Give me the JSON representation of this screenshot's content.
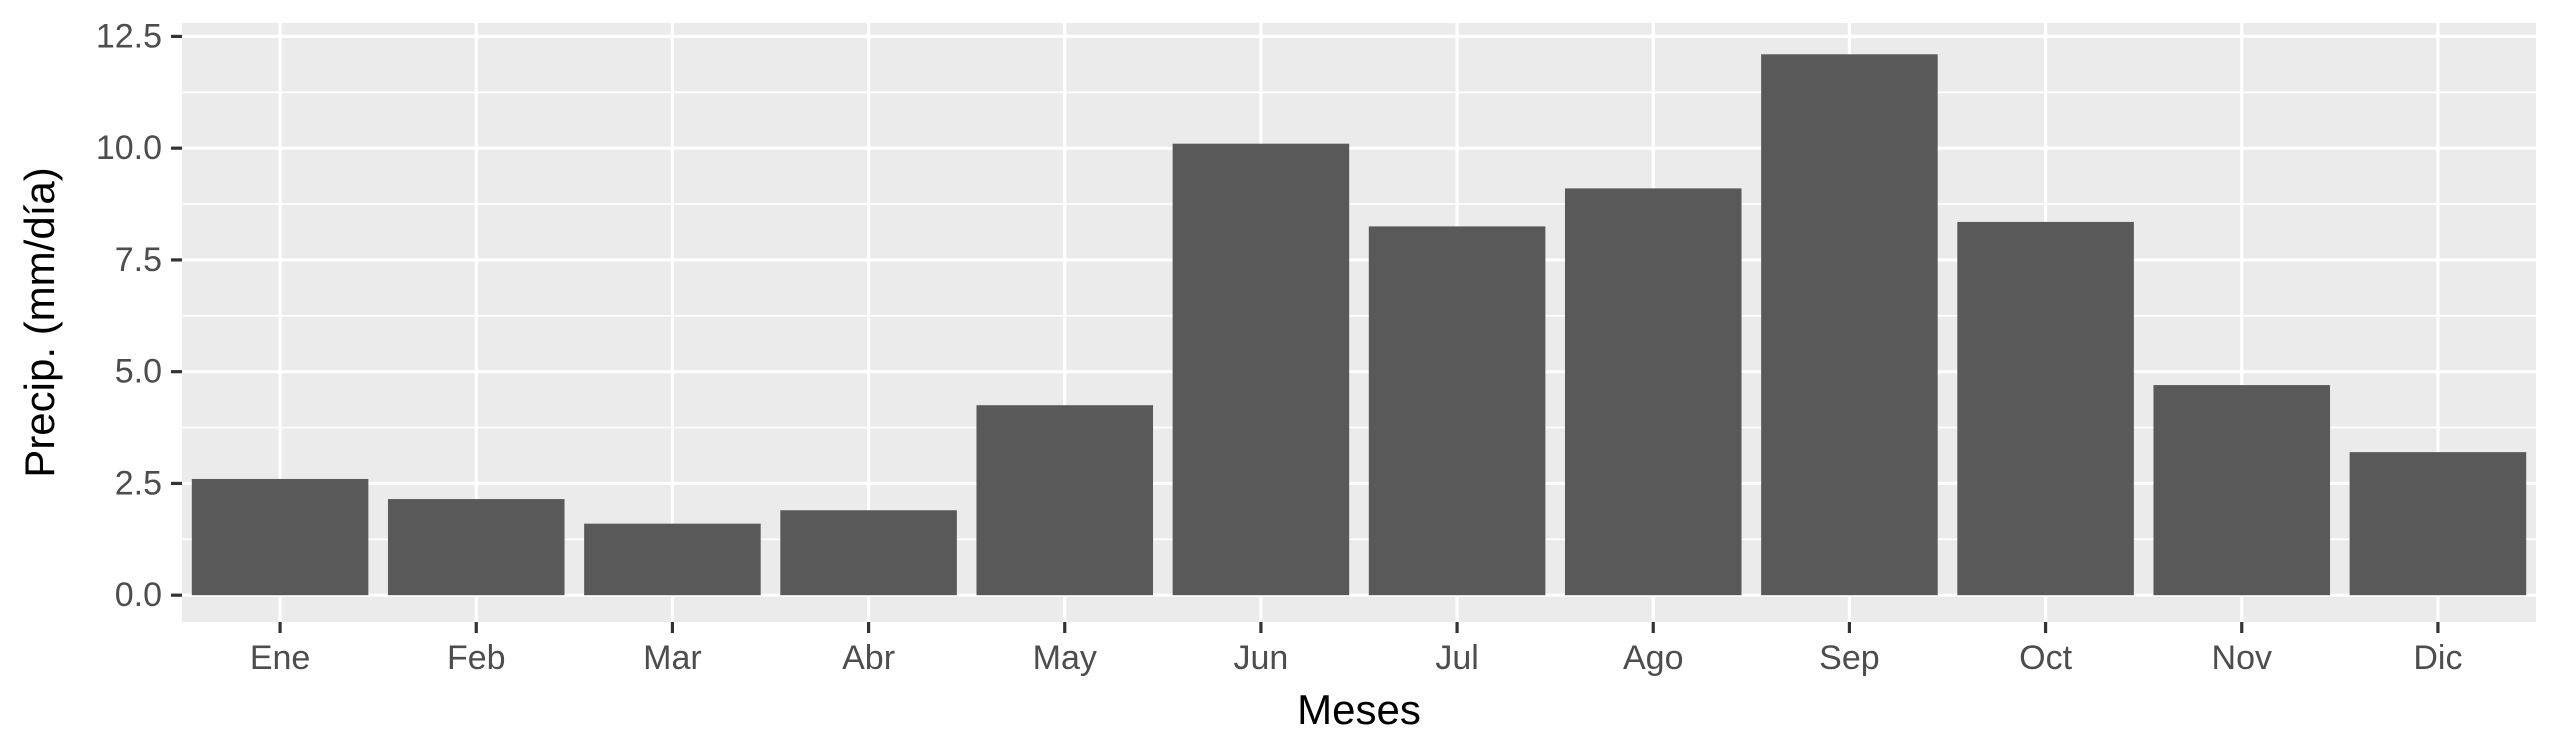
{
  "chart_data": {
    "type": "bar",
    "title": "",
    "xlabel": "Meses",
    "ylabel": "Precip. (mm/día)",
    "categories": [
      "Ene",
      "Feb",
      "Mar",
      "Abr",
      "May",
      "Jun",
      "Jul",
      "Ago",
      "Sep",
      "Oct",
      "Nov",
      "Dic"
    ],
    "values": [
      2.6,
      2.15,
      1.6,
      1.9,
      4.25,
      10.1,
      8.25,
      9.1,
      12.1,
      8.35,
      4.7,
      3.2
    ],
    "ylim": [
      -0.6,
      12.8
    ],
    "yticks": [
      0,
      2.5,
      5,
      7.5,
      10,
      12.5
    ],
    "ytick_labels": [
      "0.0",
      "2.5",
      "5.0",
      "7.5",
      "10.0",
      "12.5"
    ],
    "grid": true,
    "legend": "none",
    "colors": {
      "panel_background": "#EBEBEB",
      "grid_major": "#FFFFFF",
      "bar_fill": "#595959",
      "tick_text": "#4D4D4D",
      "tick_mark": "#333333",
      "axis_title": "#000000"
    }
  }
}
